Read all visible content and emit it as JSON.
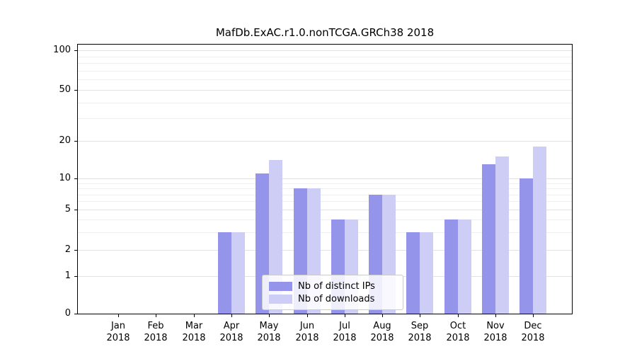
{
  "chart_data": {
    "type": "bar",
    "title": "MafDb.ExAC.r1.0.nonTCGA.GRCh38 2018",
    "categories": [
      "Jan 2018",
      "Feb 2018",
      "Mar 2018",
      "Apr 2018",
      "May 2018",
      "Jun 2018",
      "Jul 2018",
      "Aug 2018",
      "Sep 2018",
      "Oct 2018",
      "Nov 2018",
      "Dec 2018"
    ],
    "series": [
      {
        "name": "Nb of distinct IPs",
        "color": "#9494ea",
        "values": [
          0,
          0,
          0,
          3,
          11,
          8,
          4,
          7,
          3,
          4,
          13,
          10
        ]
      },
      {
        "name": "Nb of downloads",
        "color": "#cdcdf6",
        "values": [
          0,
          0,
          0,
          3,
          14,
          8,
          4,
          7,
          3,
          4,
          15,
          18
        ]
      }
    ],
    "xlabel": "",
    "ylabel": "",
    "yscale": "log",
    "ylim": [
      0,
      100
    ],
    "yticks": [
      0,
      1,
      2,
      5,
      10,
      20,
      50,
      100
    ],
    "grid_values": [
      1,
      2,
      3,
      4,
      5,
      6,
      7,
      8,
      9,
      10,
      20,
      30,
      40,
      50,
      60,
      70,
      80,
      90,
      100
    ],
    "grid": true,
    "legend_position": "lower center"
  }
}
